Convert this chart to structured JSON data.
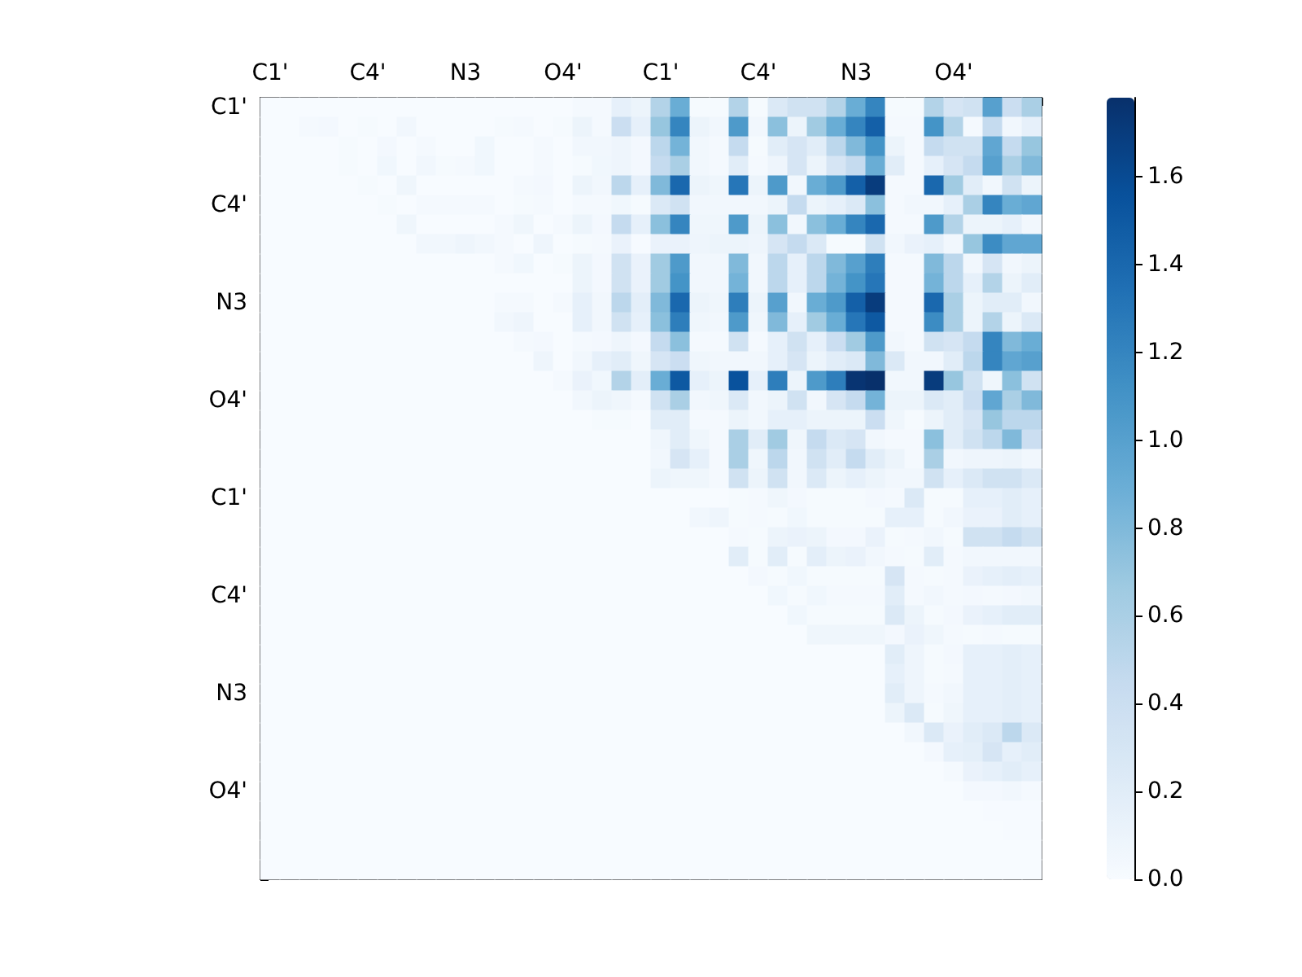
{
  "chart_data": {
    "type": "heatmap",
    "categories": [
      "C1'",
      null,
      null,
      null,
      null,
      "C4'",
      null,
      null,
      null,
      null,
      "N3",
      null,
      null,
      null,
      null,
      "O4'",
      null,
      null,
      null,
      null,
      "C1'",
      null,
      null,
      null,
      null,
      "C4'",
      null,
      null,
      null,
      null,
      "N3",
      null,
      null,
      null,
      null,
      "O4'",
      null,
      null,
      null,
      null
    ],
    "y_categories": [
      "C1'",
      null,
      null,
      null,
      null,
      "C4'",
      null,
      null,
      null,
      null,
      "N3",
      null,
      null,
      null,
      null,
      "O4'",
      null,
      null,
      null,
      null,
      "C1'",
      null,
      null,
      null,
      null,
      "C4'",
      null,
      null,
      null,
      null,
      "N3",
      null,
      null,
      null,
      null,
      "O4'",
      null,
      null,
      null,
      null
    ],
    "cells": [
      [
        0,
        0,
        0,
        0,
        0,
        0,
        0,
        0,
        0,
        0,
        0,
        0,
        0,
        0,
        0,
        0,
        0.03,
        0.03,
        0.15,
        0.1,
        0.55,
        0.9,
        0.02,
        0.02,
        0.55,
        0.02,
        0.25,
        0.35,
        0.35,
        0.55,
        0.9,
        1.2,
        0.02,
        0.02,
        0.55,
        0.3,
        0.35,
        1.0,
        0.4,
        0.6
      ],
      [
        0,
        0,
        0.03,
        0.04,
        0,
        0.02,
        0,
        0.05,
        0,
        0,
        0,
        0,
        0.02,
        0.03,
        0,
        0.02,
        0.1,
        0.03,
        0.4,
        0.15,
        0.7,
        1.2,
        0.1,
        0.05,
        1.05,
        0.05,
        0.75,
        0.1,
        0.65,
        0.9,
        1.2,
        1.45,
        0.03,
        0.03,
        1.1,
        0.55,
        0.03,
        0.45,
        0.05,
        0.15
      ],
      [
        0,
        0,
        0,
        0,
        0.02,
        0,
        0.04,
        0,
        0.03,
        0,
        0,
        0.06,
        0,
        0,
        0.03,
        0,
        0.05,
        0.05,
        0.08,
        0.04,
        0.5,
        0.85,
        0.05,
        0.03,
        0.45,
        0.02,
        0.2,
        0.3,
        0.2,
        0.5,
        0.8,
        1.1,
        0.1,
        0.03,
        0.45,
        0.35,
        0.35,
        0.95,
        0.45,
        0.7
      ],
      [
        0,
        0,
        0,
        0,
        0.02,
        0,
        0.06,
        0,
        0.05,
        0.02,
        0.03,
        0.06,
        0,
        0,
        0.03,
        0,
        0.02,
        0.06,
        0.08,
        0.04,
        0.45,
        0.6,
        0.05,
        0.03,
        0.2,
        0.03,
        0.08,
        0.3,
        0.1,
        0.3,
        0.45,
        0.9,
        0.2,
        0.03,
        0.15,
        0.3,
        0.45,
        1.0,
        0.6,
        0.8
      ],
      [
        0,
        0,
        0,
        0,
        0,
        0.02,
        0,
        0.07,
        0,
        0,
        0,
        0,
        0,
        0.03,
        0.04,
        0,
        0.1,
        0.05,
        0.5,
        0.15,
        0.8,
        1.4,
        0.1,
        0.07,
        1.3,
        0.1,
        1.05,
        0.05,
        0.9,
        1.05,
        1.45,
        1.7,
        0.03,
        0.03,
        1.4,
        0.65,
        0.2,
        0.05,
        0.35,
        0.1
      ],
      [
        0,
        0,
        0,
        0,
        0,
        0,
        0.02,
        0,
        0.03,
        0.03,
        0.03,
        0.03,
        0,
        0.02,
        0.03,
        0,
        0.03,
        0.03,
        0.06,
        0.02,
        0.25,
        0.35,
        0.05,
        0.05,
        0.05,
        0.05,
        0.1,
        0.45,
        0.1,
        0.15,
        0.25,
        0.75,
        0.03,
        0.05,
        0.05,
        0.15,
        0.6,
        1.2,
        0.9,
        0.95
      ],
      [
        0,
        0,
        0,
        0,
        0,
        0,
        0,
        0.07,
        0,
        0,
        0,
        0,
        0.03,
        0.07,
        0,
        0.03,
        0.1,
        0.04,
        0.45,
        0.15,
        0.75,
        1.2,
        0.07,
        0.07,
        1.05,
        0.1,
        0.75,
        0.05,
        0.75,
        0.9,
        1.2,
        1.4,
        0.03,
        0.03,
        1.05,
        0.55,
        0.1,
        0.1,
        0.15,
        0.05
      ],
      [
        0,
        0,
        0,
        0,
        0,
        0,
        0,
        0,
        0.05,
        0.05,
        0.08,
        0.05,
        0.03,
        0,
        0.08,
        0,
        0.02,
        0.03,
        0.12,
        0.01,
        0.12,
        0.12,
        0.08,
        0.1,
        0.1,
        0.08,
        0.3,
        0.45,
        0.25,
        0.02,
        0.02,
        0.35,
        0.05,
        0.12,
        0.15,
        0.05,
        0.7,
        1.15,
        0.95,
        0.95
      ],
      [
        0,
        0,
        0,
        0,
        0,
        0,
        0,
        0,
        0,
        0,
        0,
        0,
        0.03,
        0.06,
        0,
        0.02,
        0.1,
        0.04,
        0.35,
        0.12,
        0.65,
        1.05,
        0.05,
        0.05,
        0.8,
        0.05,
        0.5,
        0.15,
        0.5,
        0.8,
        1.0,
        1.25,
        0.03,
        0.03,
        0.8,
        0.5,
        0.05,
        0.3,
        0.05,
        0.1
      ],
      [
        0,
        0,
        0,
        0,
        0,
        0,
        0,
        0,
        0,
        0,
        0,
        0,
        0,
        0,
        0,
        0,
        0.1,
        0.04,
        0.35,
        0.12,
        0.65,
        1.1,
        0.05,
        0.05,
        0.85,
        0.05,
        0.5,
        0.15,
        0.5,
        0.85,
        1.1,
        1.3,
        0.03,
        0.03,
        0.85,
        0.5,
        0.15,
        0.55,
        0.1,
        0.2
      ],
      [
        0,
        0,
        0,
        0,
        0,
        0,
        0,
        0,
        0,
        0,
        0,
        0,
        0.03,
        0.03,
        0,
        0.03,
        0.15,
        0.05,
        0.5,
        0.18,
        0.8,
        1.4,
        0.1,
        0.07,
        1.25,
        0.1,
        1.0,
        0.05,
        0.9,
        1.05,
        1.45,
        1.7,
        0.03,
        0.03,
        1.4,
        0.6,
        0.1,
        0.2,
        0.2,
        0.05
      ],
      [
        0,
        0,
        0,
        0,
        0,
        0,
        0,
        0,
        0,
        0,
        0,
        0,
        0.05,
        0.08,
        0,
        0,
        0.15,
        0.05,
        0.35,
        0.15,
        0.75,
        1.25,
        0.07,
        0.05,
        1.05,
        0.07,
        0.8,
        0.15,
        0.65,
        0.9,
        1.3,
        1.5,
        0.03,
        0.03,
        1.15,
        0.6,
        0.1,
        0.55,
        0.1,
        0.25
      ],
      [
        0,
        0,
        0,
        0,
        0,
        0,
        0,
        0,
        0,
        0,
        0,
        0,
        0,
        0.03,
        0.04,
        0,
        0.03,
        0.04,
        0.08,
        0.04,
        0.45,
        0.75,
        0.03,
        0.03,
        0.35,
        0.03,
        0.15,
        0.35,
        0.15,
        0.4,
        0.65,
        1.05,
        0.05,
        0.03,
        0.35,
        0.3,
        0.45,
        1.2,
        0.8,
        0.9
      ],
      [
        0,
        0,
        0,
        0,
        0,
        0,
        0,
        0,
        0,
        0,
        0,
        0,
        0,
        0,
        0.08,
        0,
        0.05,
        0.15,
        0.2,
        0.07,
        0.3,
        0.4,
        0.07,
        0.05,
        0.05,
        0.05,
        0.15,
        0.3,
        0.1,
        0.2,
        0.25,
        0.8,
        0.25,
        0.05,
        0.05,
        0.2,
        0.5,
        1.2,
        0.95,
        1.0
      ],
      [
        0,
        0,
        0,
        0,
        0,
        0,
        0,
        0,
        0,
        0,
        0,
        0,
        0,
        0,
        0,
        0.03,
        0.12,
        0.06,
        0.55,
        0.18,
        0.9,
        1.5,
        0.15,
        0.1,
        1.55,
        0.15,
        1.25,
        0.1,
        1.05,
        1.25,
        1.75,
        1.78,
        0.05,
        0.05,
        1.7,
        0.7,
        0.35,
        0.07,
        0.75,
        0.35
      ],
      [
        0,
        0,
        0,
        0,
        0,
        0,
        0,
        0,
        0,
        0,
        0,
        0,
        0,
        0,
        0,
        0,
        0.05,
        0.1,
        0.07,
        0.03,
        0.35,
        0.6,
        0.05,
        0.07,
        0.25,
        0.05,
        0.1,
        0.35,
        0.05,
        0.3,
        0.45,
        0.85,
        0.1,
        0.1,
        0.25,
        0.2,
        0.4,
        0.95,
        0.6,
        0.8
      ],
      [
        0,
        0,
        0,
        0,
        0,
        0,
        0,
        0,
        0,
        0,
        0,
        0,
        0,
        0,
        0,
        0,
        0,
        0.02,
        0.02,
        0,
        0.2,
        0.2,
        0.03,
        0.03,
        0.1,
        0.05,
        0.15,
        0.15,
        0.1,
        0.1,
        0.1,
        0.4,
        0.07,
        0.02,
        0.1,
        0.2,
        0.3,
        0.7,
        0.5,
        0.5
      ],
      [
        0,
        0,
        0,
        0,
        0,
        0,
        0,
        0,
        0,
        0,
        0,
        0,
        0,
        0,
        0,
        0,
        0,
        0,
        0,
        0,
        0.07,
        0.2,
        0.07,
        0.03,
        0.6,
        0.2,
        0.65,
        0.07,
        0.45,
        0.25,
        0.3,
        0.05,
        0.03,
        0.03,
        0.75,
        0.2,
        0.35,
        0.5,
        0.8,
        0.4
      ],
      [
        0,
        0,
        0,
        0,
        0,
        0,
        0,
        0,
        0,
        0,
        0,
        0,
        0,
        0,
        0,
        0,
        0,
        0,
        0,
        0,
        0.05,
        0.3,
        0.15,
        0.03,
        0.6,
        0.07,
        0.5,
        0.05,
        0.35,
        0.2,
        0.45,
        0.2,
        0.1,
        0.03,
        0.6,
        0.05,
        0.08,
        0.08,
        0.1,
        0.05
      ],
      [
        0,
        0,
        0,
        0,
        0,
        0,
        0,
        0,
        0,
        0,
        0,
        0,
        0,
        0,
        0,
        0,
        0,
        0,
        0,
        0,
        0.1,
        0.07,
        0.07,
        0.03,
        0.35,
        0.1,
        0.35,
        0.05,
        0.25,
        0.1,
        0.15,
        0.1,
        0.05,
        0.05,
        0.35,
        0.15,
        0.25,
        0.35,
        0.35,
        0.25
      ],
      [
        0,
        0,
        0,
        0,
        0,
        0,
        0,
        0,
        0,
        0,
        0,
        0,
        0,
        0,
        0,
        0,
        0,
        0,
        0,
        0,
        0,
        0,
        0,
        0,
        0.02,
        0.03,
        0.07,
        0.04,
        0.02,
        0.02,
        0.02,
        0.04,
        0.03,
        0.25,
        0.02,
        0.02,
        0.15,
        0.15,
        0.2,
        0.15
      ],
      [
        0,
        0,
        0,
        0,
        0,
        0,
        0,
        0,
        0,
        0,
        0,
        0,
        0,
        0,
        0,
        0,
        0,
        0,
        0,
        0,
        0,
        0,
        0.05,
        0.08,
        0.02,
        0.03,
        0.02,
        0.06,
        0.02,
        0.02,
        0.02,
        0.02,
        0.15,
        0.15,
        0.02,
        0.05,
        0.12,
        0.12,
        0.2,
        0.15
      ],
      [
        0,
        0,
        0,
        0,
        0,
        0,
        0,
        0,
        0,
        0,
        0,
        0,
        0,
        0,
        0,
        0,
        0,
        0,
        0,
        0,
        0,
        0,
        0,
        0,
        0.03,
        0.02,
        0.1,
        0.12,
        0.1,
        0.04,
        0.04,
        0.12,
        0.02,
        0.03,
        0.05,
        0.02,
        0.35,
        0.35,
        0.45,
        0.35
      ],
      [
        0,
        0,
        0,
        0,
        0,
        0,
        0,
        0,
        0,
        0,
        0,
        0,
        0,
        0,
        0,
        0,
        0,
        0,
        0,
        0,
        0,
        0,
        0,
        0,
        0.2,
        0.02,
        0.2,
        0.02,
        0.18,
        0.1,
        0.12,
        0.05,
        0.03,
        0.02,
        0.2,
        0.03,
        0.05,
        0.05,
        0.05,
        0.05
      ],
      [
        0,
        0,
        0,
        0,
        0,
        0,
        0,
        0,
        0,
        0,
        0,
        0,
        0,
        0,
        0,
        0,
        0,
        0,
        0,
        0,
        0,
        0,
        0,
        0,
        0,
        0.04,
        0.02,
        0.06,
        0.02,
        0.02,
        0.02,
        0.02,
        0.3,
        0.03,
        0.02,
        0.03,
        0.12,
        0.15,
        0.18,
        0.15
      ],
      [
        0,
        0,
        0,
        0,
        0,
        0,
        0,
        0,
        0,
        0,
        0,
        0,
        0,
        0,
        0,
        0,
        0,
        0,
        0,
        0,
        0,
        0,
        0,
        0,
        0,
        0,
        0.06,
        0.02,
        0.06,
        0.03,
        0.03,
        0.03,
        0.2,
        0.03,
        0.05,
        0.03,
        0.04,
        0.03,
        0.04,
        0.05
      ],
      [
        0,
        0,
        0,
        0,
        0,
        0,
        0,
        0,
        0,
        0,
        0,
        0,
        0,
        0,
        0,
        0,
        0,
        0,
        0,
        0,
        0,
        0,
        0,
        0,
        0,
        0,
        0,
        0.06,
        0.02,
        0.02,
        0.02,
        0.02,
        0.25,
        0.1,
        0.02,
        0.04,
        0.12,
        0.15,
        0.2,
        0.2
      ],
      [
        0,
        0,
        0,
        0,
        0,
        0,
        0,
        0,
        0,
        0,
        0,
        0,
        0,
        0,
        0,
        0,
        0,
        0,
        0,
        0,
        0,
        0,
        0,
        0,
        0,
        0,
        0,
        0,
        0.07,
        0.07,
        0.07,
        0.07,
        0.04,
        0.12,
        0.07,
        0.03,
        0.02,
        0.03,
        0.02,
        0.02
      ],
      [
        0,
        0,
        0,
        0,
        0,
        0,
        0,
        0,
        0,
        0,
        0,
        0,
        0,
        0,
        0,
        0,
        0,
        0,
        0,
        0,
        0,
        0,
        0,
        0,
        0,
        0,
        0,
        0,
        0,
        0,
        0,
        0,
        0.2,
        0.08,
        0.02,
        0.04,
        0.15,
        0.15,
        0.18,
        0.15
      ],
      [
        0,
        0,
        0,
        0,
        0,
        0,
        0,
        0,
        0,
        0,
        0,
        0,
        0,
        0,
        0,
        0,
        0,
        0,
        0,
        0,
        0,
        0,
        0,
        0,
        0,
        0,
        0,
        0,
        0,
        0,
        0,
        0,
        0.15,
        0.08,
        0.02,
        0.03,
        0.15,
        0.15,
        0.18,
        0.15
      ],
      [
        0,
        0,
        0,
        0,
        0,
        0,
        0,
        0,
        0,
        0,
        0,
        0,
        0,
        0,
        0,
        0,
        0,
        0,
        0,
        0,
        0,
        0,
        0,
        0,
        0,
        0,
        0,
        0,
        0,
        0,
        0,
        0,
        0.2,
        0.08,
        0.03,
        0.05,
        0.15,
        0.15,
        0.18,
        0.15
      ],
      [
        0,
        0,
        0,
        0,
        0,
        0,
        0,
        0,
        0,
        0,
        0,
        0,
        0,
        0,
        0,
        0,
        0,
        0,
        0,
        0,
        0,
        0,
        0,
        0,
        0,
        0,
        0,
        0,
        0,
        0,
        0,
        0,
        0.1,
        0.25,
        0.02,
        0.07,
        0.15,
        0.15,
        0.18,
        0.15
      ],
      [
        0,
        0,
        0,
        0,
        0,
        0,
        0,
        0,
        0,
        0,
        0,
        0,
        0,
        0,
        0,
        0,
        0,
        0,
        0,
        0,
        0,
        0,
        0,
        0,
        0,
        0,
        0,
        0,
        0,
        0,
        0,
        0,
        0,
        0.05,
        0.25,
        0.12,
        0.2,
        0.25,
        0.5,
        0.25
      ],
      [
        0,
        0,
        0,
        0,
        0,
        0,
        0,
        0,
        0,
        0,
        0,
        0,
        0,
        0,
        0,
        0,
        0,
        0,
        0,
        0,
        0,
        0,
        0,
        0,
        0,
        0,
        0,
        0,
        0,
        0,
        0,
        0,
        0,
        0,
        0.04,
        0.15,
        0.17,
        0.3,
        0.15,
        0.2
      ],
      [
        0,
        0,
        0,
        0,
        0,
        0,
        0,
        0,
        0,
        0,
        0,
        0,
        0,
        0,
        0,
        0,
        0,
        0,
        0,
        0,
        0,
        0,
        0,
        0,
        0,
        0,
        0,
        0,
        0,
        0,
        0,
        0,
        0,
        0,
        0,
        0.03,
        0.12,
        0.15,
        0.2,
        0.15
      ],
      [
        0,
        0,
        0,
        0,
        0,
        0,
        0,
        0,
        0,
        0,
        0,
        0,
        0,
        0,
        0,
        0,
        0,
        0,
        0,
        0,
        0,
        0,
        0,
        0,
        0,
        0,
        0,
        0,
        0,
        0,
        0,
        0,
        0,
        0,
        0,
        0,
        0.04,
        0.04,
        0.05,
        0.03
      ],
      [
        0,
        0,
        0,
        0,
        0,
        0,
        0,
        0,
        0,
        0,
        0,
        0,
        0,
        0,
        0,
        0,
        0,
        0,
        0,
        0,
        0,
        0,
        0,
        0,
        0,
        0,
        0,
        0,
        0,
        0,
        0,
        0,
        0,
        0,
        0,
        0,
        0,
        0.01,
        0.01,
        0.01
      ],
      [
        0,
        0,
        0,
        0,
        0,
        0,
        0,
        0,
        0,
        0,
        0,
        0,
        0,
        0,
        0,
        0,
        0,
        0,
        0,
        0,
        0,
        0,
        0,
        0,
        0,
        0,
        0,
        0,
        0,
        0,
        0,
        0,
        0,
        0,
        0,
        0,
        0,
        0,
        0.01,
        0.01
      ],
      [
        0,
        0,
        0,
        0,
        0,
        0,
        0,
        0,
        0,
        0,
        0,
        0,
        0,
        0,
        0,
        0,
        0,
        0,
        0,
        0,
        0,
        0,
        0,
        0,
        0,
        0,
        0,
        0,
        0,
        0,
        0,
        0,
        0,
        0,
        0,
        0,
        0,
        0,
        0,
        0
      ],
      [
        0,
        0,
        0,
        0,
        0,
        0,
        0,
        0,
        0,
        0,
        0,
        0,
        0,
        0,
        0,
        0,
        0,
        0,
        0,
        0,
        0,
        0,
        0,
        0,
        0,
        0,
        0,
        0,
        0,
        0,
        0,
        0,
        0,
        0,
        0,
        0,
        0,
        0,
        0,
        0
      ]
    ],
    "clim": [
      0,
      1.78
    ],
    "cticks": [
      {
        "value": 0,
        "label": "0.0"
      },
      {
        "value": 0.2,
        "label": "0.2"
      },
      {
        "value": 0.4,
        "label": "0.4"
      },
      {
        "value": 0.6,
        "label": "0.6"
      },
      {
        "value": 0.8,
        "label": "0.8"
      },
      {
        "value": 1,
        "label": "1.0"
      },
      {
        "value": 1.2,
        "label": "1.2"
      },
      {
        "value": 1.4,
        "label": "1.4"
      },
      {
        "value": 1.6,
        "label": "1.6"
      }
    ],
    "grid": false
  }
}
